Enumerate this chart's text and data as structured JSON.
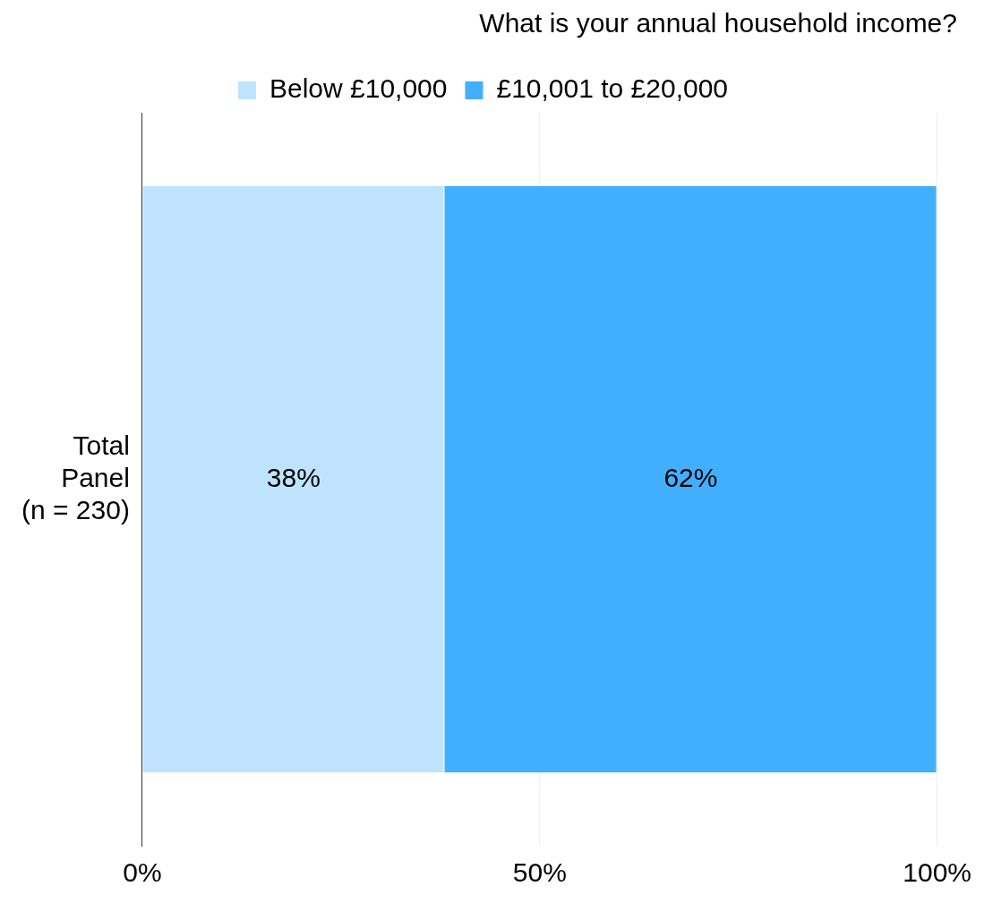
{
  "chart_data": {
    "type": "bar",
    "orientation": "horizontal",
    "stacked": true,
    "title": "What is your annual household income?",
    "categories": [
      "Total Panel (n = 230)"
    ],
    "series": [
      {
        "name": "Below £10,000",
        "color": "#bfe3fd",
        "values": [
          38
        ],
        "value_labels": [
          "38%"
        ]
      },
      {
        "name": "£10,001 to £20,000",
        "color": "#42affe",
        "values": [
          62
        ],
        "value_labels": [
          "62%"
        ]
      }
    ],
    "xlim": [
      0,
      100
    ],
    "xticks": [
      {
        "value": 0,
        "label": "0%"
      },
      {
        "value": 50,
        "label": "50%"
      },
      {
        "value": 100,
        "label": "100%"
      }
    ],
    "grid": "x",
    "legend": "top"
  }
}
